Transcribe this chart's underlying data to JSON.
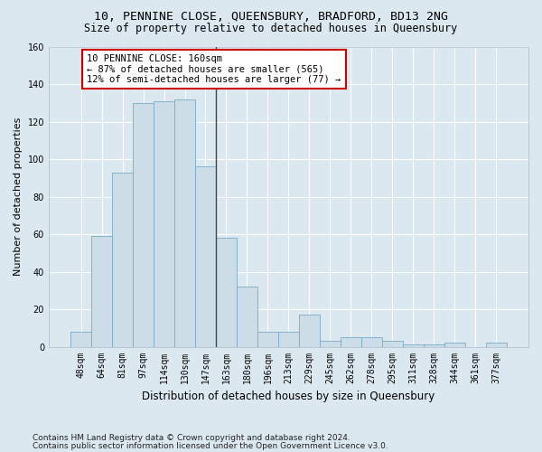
{
  "title_line1": "10, PENNINE CLOSE, QUEENSBURY, BRADFORD, BD13 2NG",
  "title_line2": "Size of property relative to detached houses in Queensbury",
  "xlabel": "Distribution of detached houses by size in Queensbury",
  "ylabel": "Number of detached properties",
  "categories": [
    "48sqm",
    "64sqm",
    "81sqm",
    "97sqm",
    "114sqm",
    "130sqm",
    "147sqm",
    "163sqm",
    "180sqm",
    "196sqm",
    "213sqm",
    "229sqm",
    "245sqm",
    "262sqm",
    "278sqm",
    "295sqm",
    "311sqm",
    "328sqm",
    "344sqm",
    "361sqm",
    "377sqm"
  ],
  "values": [
    8,
    59,
    93,
    130,
    131,
    132,
    96,
    58,
    32,
    8,
    8,
    17,
    3,
    5,
    5,
    3,
    1,
    1,
    2,
    0,
    2
  ],
  "bar_color": "#ccdde8",
  "bar_edge_color": "#7aaac8",
  "vline_x_index": 7,
  "vline_color": "#444444",
  "annotation_text": "10 PENNINE CLOSE: 160sqm\n← 87% of detached houses are smaller (565)\n12% of semi-detached houses are larger (77) →",
  "annotation_box_color": "#ffffff",
  "annotation_box_edge_color": "#cc0000",
  "ylim": [
    0,
    160
  ],
  "yticks": [
    0,
    20,
    40,
    60,
    80,
    100,
    120,
    140,
    160
  ],
  "background_color": "#dce8f0",
  "grid_color": "#ffffff",
  "footnote_line1": "Contains HM Land Registry data © Crown copyright and database right 2024.",
  "footnote_line2": "Contains public sector information licensed under the Open Government Licence v3.0.",
  "title_fontsize": 9.5,
  "subtitle_fontsize": 8.5,
  "ylabel_fontsize": 8,
  "xlabel_fontsize": 8.5,
  "tick_fontsize": 7,
  "annotation_fontsize": 7.5,
  "footnote_fontsize": 6.5
}
